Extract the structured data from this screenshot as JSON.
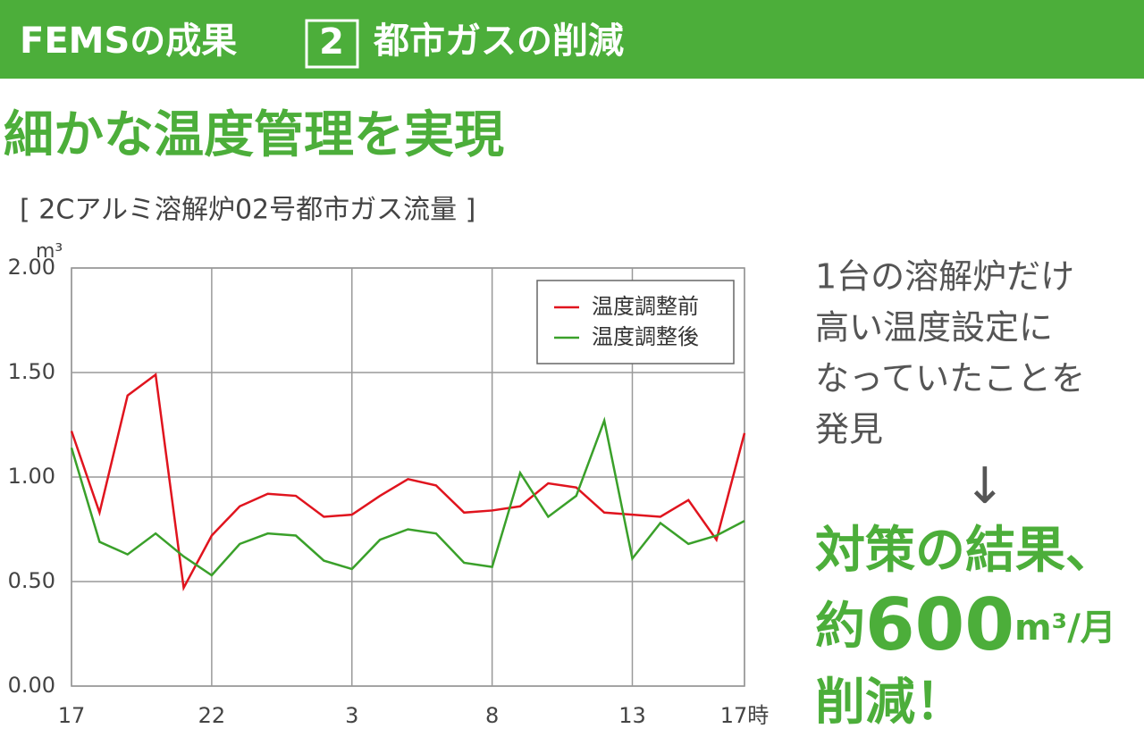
{
  "header": {
    "prefix": "FEMSの成果",
    "number": "2",
    "topic": "都市ガスの削減"
  },
  "headline": "細かな温度管理を実現",
  "chart_data": {
    "type": "line",
    "subtitle": "[ 2Cアルミ溶解炉02号都市ガス流量 ]",
    "y_unit": "m³",
    "x": [
      0,
      1,
      2,
      3,
      4,
      5,
      6,
      7,
      8,
      9,
      10,
      11,
      12,
      13,
      14,
      15,
      16,
      17,
      18,
      19,
      20,
      21,
      22,
      23,
      24
    ],
    "xlim": [
      0,
      24
    ],
    "xticks": [
      {
        "value": 0,
        "label": "17"
      },
      {
        "value": 5,
        "label": "22"
      },
      {
        "value": 10,
        "label": "3"
      },
      {
        "value": 15,
        "label": "8"
      },
      {
        "value": 20,
        "label": "13"
      },
      {
        "value": 24,
        "label": "17時"
      }
    ],
    "ylim": [
      0,
      2
    ],
    "yticks": [
      {
        "value": 0,
        "label": "0.00"
      },
      {
        "value": 0.5,
        "label": "0.50"
      },
      {
        "value": 1,
        "label": "1.00"
      },
      {
        "value": 1.5,
        "label": "1.50"
      },
      {
        "value": 2,
        "label": "2.00"
      }
    ],
    "grid": true,
    "legend": "top-right",
    "series": [
      {
        "name": "温度調整前",
        "color": "#e0141e",
        "values": [
          1.22,
          0.83,
          1.39,
          1.49,
          0.47,
          0.72,
          0.86,
          0.92,
          0.91,
          0.81,
          0.82,
          0.91,
          0.99,
          0.96,
          0.83,
          0.84,
          0.86,
          0.97,
          0.95,
          0.83,
          0.82,
          0.81,
          0.89,
          0.7,
          1.21
        ]
      },
      {
        "name": "温度調整後",
        "color": "#3aa02a",
        "values": [
          1.14,
          0.69,
          0.63,
          0.73,
          0.62,
          0.53,
          0.68,
          0.73,
          0.72,
          0.6,
          0.56,
          0.7,
          0.75,
          0.73,
          0.59,
          0.57,
          1.02,
          0.81,
          0.91,
          1.27,
          0.61,
          0.78,
          0.68,
          0.72,
          0.79
        ]
      }
    ]
  },
  "finding": [
    "1台の溶解炉だけ",
    "高い温度設定に",
    "なっていたことを",
    "発見"
  ],
  "arrow": "↓",
  "result": {
    "line1": "対策の結果、",
    "prefix": "約",
    "amount": "600",
    "unit": "m³/月",
    "line3": "削減！"
  }
}
